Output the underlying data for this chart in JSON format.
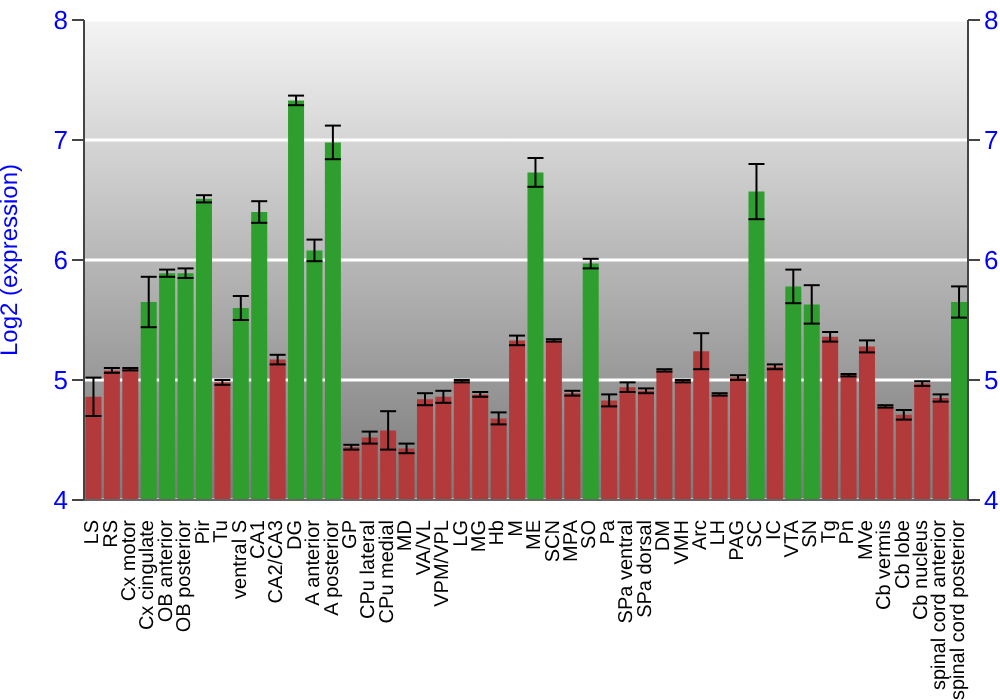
{
  "chart_data": {
    "type": "bar",
    "ylabel": "Log2 (expression)",
    "categories": [
      "LS",
      "RS",
      "Cx motor",
      "Cx cingulate",
      "OB anterior",
      "OB posterior",
      "Pir",
      "Tu",
      "ventral S",
      "CA1",
      "CA2/CA3",
      "DG",
      "A anterior",
      "A posterior",
      "GP",
      "CPu lateral",
      "CPu medial",
      "MD",
      "VA/VL",
      "VPM/VPL",
      "LG",
      "MG",
      "Hb",
      "M",
      "ME",
      "SCN",
      "MPA",
      "SO",
      "Pa",
      "SPa ventral",
      "SPa dorsal",
      "DM",
      "VMH",
      "Arc",
      "LH",
      "PAG",
      "SC",
      "IC",
      "VTA",
      "SN",
      "Tg",
      "Pn",
      "MVe",
      "Cb vermis",
      "Cb lobe",
      "Cb nucleus",
      "spinal cord anterior",
      "spinal cord posterior"
    ],
    "values": [
      4.86,
      5.08,
      5.09,
      5.65,
      5.89,
      5.89,
      6.51,
      4.98,
      5.6,
      6.4,
      5.17,
      7.33,
      6.08,
      6.98,
      4.44,
      4.52,
      4.58,
      4.43,
      4.84,
      4.86,
      4.99,
      4.88,
      4.68,
      5.33,
      6.73,
      5.33,
      4.89,
      5.97,
      4.83,
      4.94,
      4.91,
      5.08,
      4.99,
      5.24,
      4.88,
      5.02,
      6.57,
      5.11,
      5.78,
      5.63,
      5.36,
      5.04,
      5.28,
      4.78,
      4.71,
      4.97,
      4.85,
      5.65
    ],
    "errors": [
      0.16,
      0.02,
      0.01,
      0.21,
      0.03,
      0.04,
      0.03,
      0.02,
      0.1,
      0.09,
      0.04,
      0.04,
      0.09,
      0.14,
      0.02,
      0.05,
      0.16,
      0.04,
      0.05,
      0.05,
      0.01,
      0.02,
      0.05,
      0.04,
      0.12,
      0.01,
      0.02,
      0.04,
      0.05,
      0.04,
      0.02,
      0.01,
      0.01,
      0.15,
      0.01,
      0.02,
      0.23,
      0.02,
      0.14,
      0.16,
      0.04,
      0.01,
      0.05,
      0.01,
      0.04,
      0.02,
      0.03,
      0.13
    ],
    "colors": [
      "#b23a3a",
      "#b23a3a",
      "#b23a3a",
      "#2e9e2e",
      "#2e9e2e",
      "#2e9e2e",
      "#2e9e2e",
      "#b23a3a",
      "#2e9e2e",
      "#2e9e2e",
      "#b23a3a",
      "#2e9e2e",
      "#2e9e2e",
      "#2e9e2e",
      "#b23a3a",
      "#b23a3a",
      "#b23a3a",
      "#b23a3a",
      "#b23a3a",
      "#b23a3a",
      "#b23a3a",
      "#b23a3a",
      "#b23a3a",
      "#b23a3a",
      "#2e9e2e",
      "#b23a3a",
      "#b23a3a",
      "#2e9e2e",
      "#b23a3a",
      "#b23a3a",
      "#b23a3a",
      "#b23a3a",
      "#b23a3a",
      "#b23a3a",
      "#b23a3a",
      "#b23a3a",
      "#2e9e2e",
      "#b23a3a",
      "#2e9e2e",
      "#2e9e2e",
      "#b23a3a",
      "#b23a3a",
      "#b23a3a",
      "#b23a3a",
      "#b23a3a",
      "#b23a3a",
      "#b23a3a",
      "#2e9e2e"
    ],
    "ylim": [
      4,
      8
    ],
    "yticks": [
      4,
      5,
      6,
      7,
      8
    ],
    "y2lim": [
      4,
      8
    ],
    "y2ticks": [
      4,
      5,
      6,
      7,
      8
    ],
    "grid": "y"
  }
}
